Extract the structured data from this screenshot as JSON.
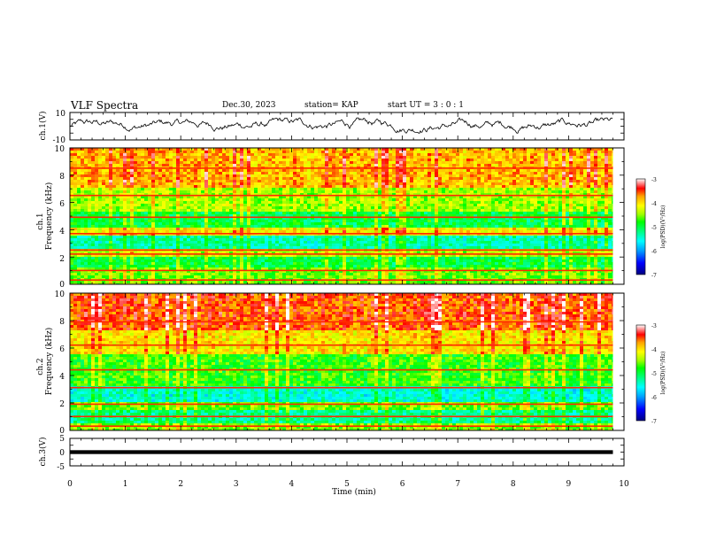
{
  "header": {
    "title": "VLF Spectra",
    "date": "Dec.30, 2023",
    "station": "station= KAP",
    "start": "start UT =  3 : 0  : 1"
  },
  "colors": {
    "colormap": [
      "#000080",
      "#0000ff",
      "#00a0ff",
      "#00ffff",
      "#00ff80",
      "#00ff00",
      "#80ff00",
      "#ffff00",
      "#ffa000",
      "#ff0000",
      "#ff8080",
      "#ffffff"
    ],
    "trace": "#000000"
  },
  "chart_data": [
    {
      "type": "line",
      "name": "ch1-waveform",
      "ylabel": "ch.1(V)",
      "ylim": [
        -10,
        10
      ],
      "y_ticks": [
        "10",
        "-10"
      ],
      "xlim": [
        0,
        10
      ],
      "description_values": {
        "typical_min": -5,
        "typical_max": 6
      }
    },
    {
      "type": "heatmap",
      "name": "ch1-spectrogram",
      "ylabel_line1": "ch.1",
      "ylabel_line2": "Frequency (kHz)",
      "ylim": [
        0,
        10
      ],
      "y_ticks": [
        "0",
        "2",
        "4",
        "6",
        "8",
        "10"
      ],
      "xlim": [
        0,
        10
      ],
      "data_end_min": 9.8,
      "narrowband_lines_khz": [
        0.3,
        1.0,
        2.2,
        2.5,
        3.7,
        4.9,
        6.5,
        8.5
      ],
      "colorbar": {
        "label": "log(PSD)(V²/Hz)",
        "range": [
          -7,
          -3
        ],
        "ticks": [
          "-3",
          "-4",
          "-5",
          "-6",
          "-7"
        ]
      }
    },
    {
      "type": "heatmap",
      "name": "ch2-spectrogram",
      "ylabel_line1": "ch.2",
      "ylabel_line2": "Frequency (kHz)",
      "ylim": [
        0,
        10
      ],
      "y_ticks": [
        "0",
        "2",
        "4",
        "6",
        "8",
        "10"
      ],
      "xlim": [
        0,
        10
      ],
      "data_end_min": 9.8,
      "narrowband_lines_khz": [
        0.3,
        1.0,
        1.9,
        3.1,
        4.4,
        6.2,
        7.9
      ],
      "colorbar": {
        "label": "log(PSD)(V²/Hz)",
        "range": [
          -7,
          -3
        ],
        "ticks": [
          "-3",
          "-4",
          "-5",
          "-6",
          "-7"
        ]
      }
    },
    {
      "type": "line",
      "name": "ch3-waveform",
      "ylabel": "ch.3(V)",
      "ylim": [
        -5,
        5
      ],
      "y_ticks": [
        "5",
        "0",
        "-5"
      ],
      "xlim": [
        0,
        10
      ],
      "band": [
        -0.7,
        0.7
      ]
    }
  ],
  "x_axis": {
    "label": "Time (min)",
    "ticks": [
      "0",
      "1",
      "2",
      "3",
      "4",
      "5",
      "6",
      "7",
      "8",
      "9",
      "10"
    ]
  }
}
